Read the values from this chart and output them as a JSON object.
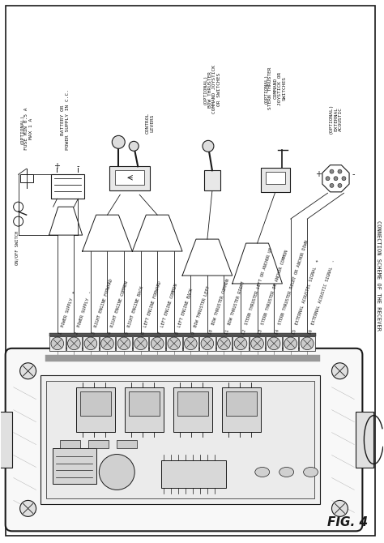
{
  "title": "CONNECTION SCHEME OF THE RECEVER",
  "fig_label": "FIG. 4",
  "bg_color": "#ffffff",
  "line_color": "#1a1a1a",
  "terminal_labels": [
    "1  POWER SUPPLY  +",
    "2  POWER SUPPLY  -",
    "3  RIGHT ENGINE FORWARD",
    "4  RIGHT ENGINE COMMON",
    "5  RIGHT ENGINE BACK",
    "6  LEFT ENGINE FORWARD",
    "7  LEFT ENGINE COMMON",
    "8  LEFT ENGINE BACK",
    "9  BOW THRUSTER LEFT",
    "10  BOW THRUSTER COMMON",
    "11  BOW THRUSTER RIGHT",
    "12  STERN THRUSTER LEFT OR ANCHOR UP",
    "13  STERN THRUSTER OR ANCHOR COMMON",
    "14  STERN THRUSTER RIGHT OR ANCHOR DOWN",
    "15  EXTERNAL ACOUSTIC SIGNAL  +",
    "16  EXTERNAL ACOUSTIC SIGNAL  -"
  ]
}
